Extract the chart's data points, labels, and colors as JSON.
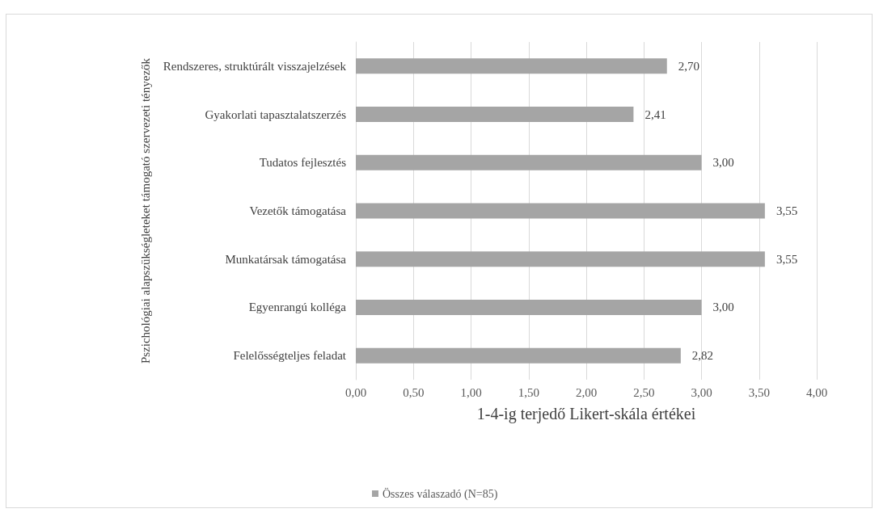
{
  "chart_data": {
    "type": "bar",
    "orientation": "horizontal",
    "categories": [
      "Rendszeres, struktúrált visszajelzések",
      "Gyakorlati tapasztalatszerzés",
      "Tudatos fejlesztés",
      "Vezetők támogatása",
      "Munkatársak támogatása",
      "Egyenrangú kolléga",
      "Felelősségteljes feladat"
    ],
    "series": [
      {
        "name": "Összes válaszadó (N=85)",
        "color": "#a5a5a5",
        "values": [
          2.7,
          2.41,
          3.0,
          3.55,
          3.55,
          3.0,
          2.82
        ],
        "value_labels": [
          "2,70",
          "2,41",
          "3,00",
          "3,55",
          "3,55",
          "3,00",
          "2,82"
        ]
      }
    ],
    "xlabel": "1-4-ig terjedő Likert-skála értékei",
    "ylabel": "Pszichológiai alapszükségleteket támogató szervezeti tényezők",
    "xlim": [
      0,
      4
    ],
    "xticks": [
      {
        "value": 0,
        "label": "0,00"
      },
      {
        "value": 0.5,
        "label": "0,50"
      },
      {
        "value": 1,
        "label": "1,00"
      },
      {
        "value": 1.5,
        "label": "1,50"
      },
      {
        "value": 2,
        "label": "2,00"
      },
      {
        "value": 2.5,
        "label": "2,50"
      },
      {
        "value": 3,
        "label": "3,00"
      },
      {
        "value": 3.5,
        "label": "3,50"
      },
      {
        "value": 4,
        "label": "4,00"
      }
    ],
    "grid": "x",
    "legend": "bottom"
  }
}
